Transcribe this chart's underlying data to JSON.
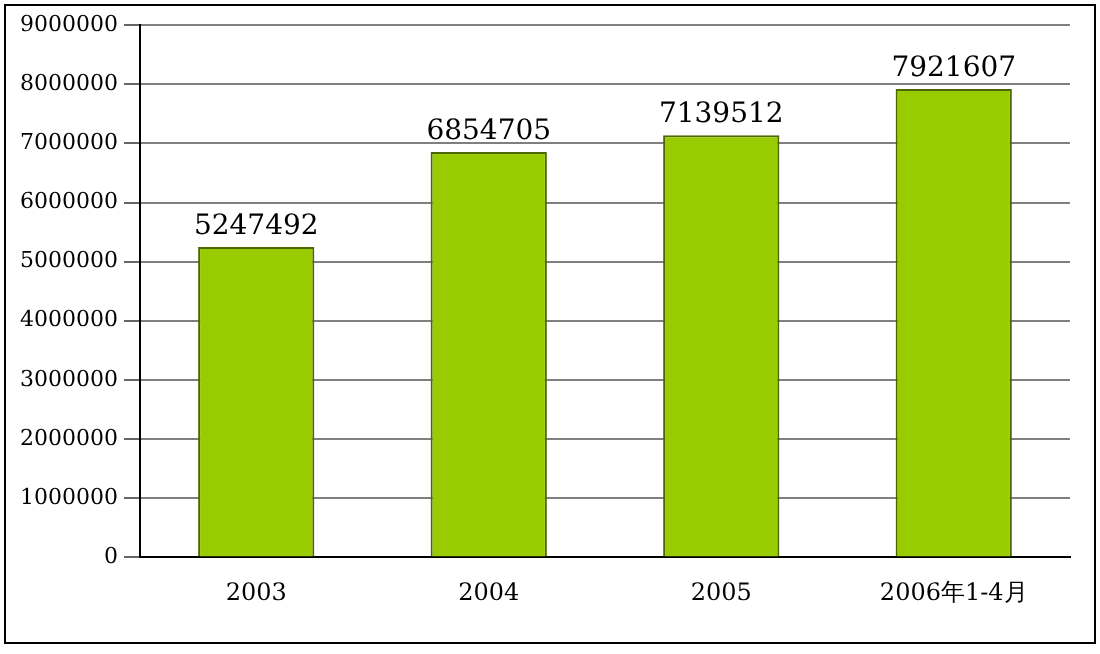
{
  "chart_data": {
    "type": "bar",
    "categories": [
      "2003",
      "2004",
      "2005",
      "2006年1-4月"
    ],
    "values": [
      5247492,
      6854705,
      7139512,
      7921607
    ],
    "color": "#99cc00",
    "ylim": [
      0,
      9000000
    ],
    "yticks": [
      0,
      1000000,
      2000000,
      3000000,
      4000000,
      5000000,
      6000000,
      7000000,
      8000000,
      9000000
    ],
    "grid": "y",
    "data_labels": true,
    "legend": false
  }
}
